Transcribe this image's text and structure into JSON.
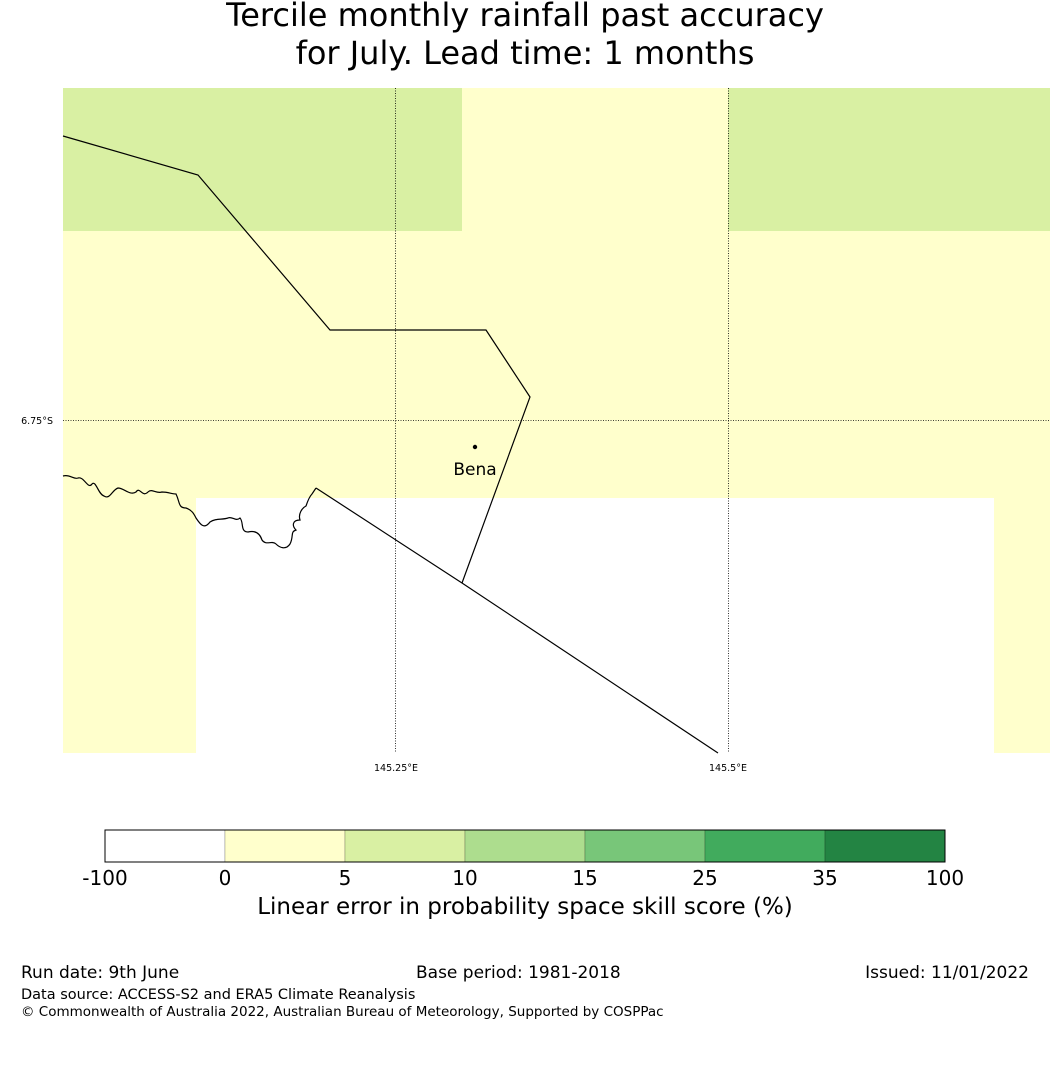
{
  "title": {
    "line1": "Tercile monthly rainfall past accuracy",
    "line2": "for July. Lead time: 1 months"
  },
  "map": {
    "graticule": {
      "lat_label": "6.75°S",
      "lon_labels": [
        "145.25°E",
        "145.5°E"
      ]
    },
    "places": [
      {
        "name": "Bena"
      }
    ],
    "colors": {
      "light_yellow": "#ffffcc",
      "light_green": "#d9f0a3",
      "no_data": "#ffffff"
    }
  },
  "colorbar": {
    "ticks": [
      "-100",
      "0",
      "5",
      "10",
      "15",
      "25",
      "35",
      "100"
    ],
    "colors": [
      "#ffffff",
      "#ffffcc",
      "#d9f0a3",
      "#addd8e",
      "#78c679",
      "#41ab5d",
      "#238443"
    ],
    "label": "Linear error in probability space skill score (%)"
  },
  "footer": {
    "run_date": "Run date: 9th June",
    "base_period": "Base period: 1981-2018",
    "issued": "Issued: 11/01/2022",
    "data_source": "Data source: ACCESS-S2 and ERA5 Climate Reanalysis",
    "copyright": "© Commonwealth of Australia 2022, Australian Bureau of Meteorology, Supported by COSPPac"
  }
}
